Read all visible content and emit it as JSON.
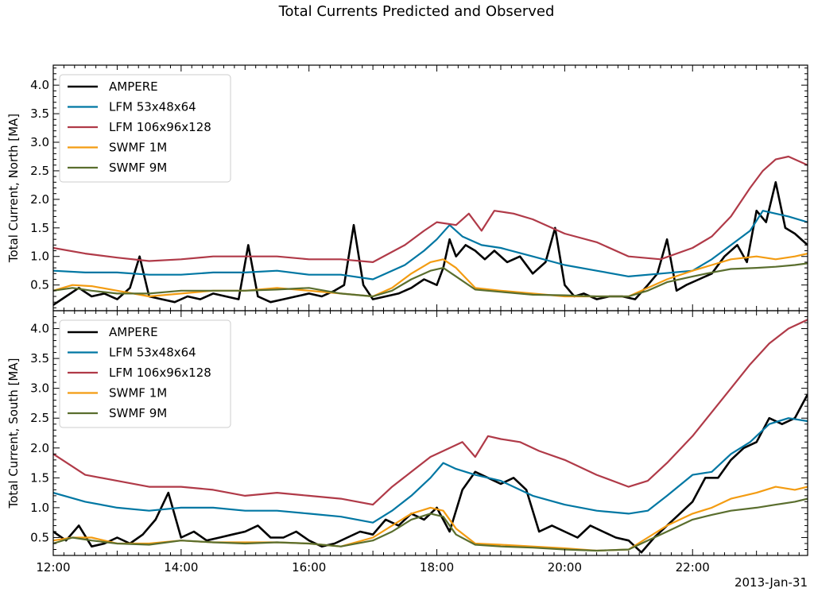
{
  "chart_data": {
    "type": "line",
    "title": "Total Currents Predicted and Observed",
    "date_label": "2013-Jan-31",
    "x_unit": "hours since 00:00",
    "xlim": [
      12.0,
      23.8
    ],
    "x_ticks": [
      12,
      14,
      16,
      18,
      20,
      22
    ],
    "x_tick_labels": [
      "12:00",
      "14:00",
      "16:00",
      "18:00",
      "20:00",
      "22:00"
    ],
    "legend_position": "upper-left",
    "panels": [
      {
        "ylabel": "Total Current, North [MA]",
        "ylim": [
          0.05,
          4.35
        ],
        "y_ticks": [
          0.5,
          1.0,
          1.5,
          2.0,
          2.5,
          3.0,
          3.5,
          4.0
        ],
        "y_tick_labels": [
          "0.5",
          "1.0",
          "1.5",
          "2.0",
          "2.5",
          "3.0",
          "3.5",
          "4.0"
        ],
        "series": [
          {
            "name": "AMPERE",
            "color": "#000000",
            "x": [
              12.0,
              12.2,
              12.4,
              12.6,
              12.8,
              13.0,
              13.2,
              13.35,
              13.5,
              13.7,
              13.9,
              14.1,
              14.3,
              14.5,
              14.7,
              14.9,
              15.05,
              15.2,
              15.4,
              15.6,
              15.8,
              16.0,
              16.2,
              16.4,
              16.55,
              16.7,
              16.85,
              17.0,
              17.2,
              17.4,
              17.6,
              17.8,
              18.0,
              18.1,
              18.2,
              18.3,
              18.45,
              18.6,
              18.75,
              18.9,
              19.1,
              19.3,
              19.5,
              19.7,
              19.85,
              20.0,
              20.15,
              20.3,
              20.5,
              20.7,
              20.9,
              21.1,
              21.3,
              21.45,
              21.6,
              21.75,
              21.9,
              22.1,
              22.3,
              22.5,
              22.7,
              22.85,
              23.0,
              23.15,
              23.3,
              23.45,
              23.6,
              23.8
            ],
            "y": [
              0.15,
              0.3,
              0.45,
              0.3,
              0.35,
              0.25,
              0.45,
              1.0,
              0.3,
              0.25,
              0.2,
              0.3,
              0.25,
              0.35,
              0.3,
              0.25,
              1.2,
              0.3,
              0.2,
              0.25,
              0.3,
              0.35,
              0.3,
              0.4,
              0.5,
              1.55,
              0.5,
              0.25,
              0.3,
              0.35,
              0.45,
              0.6,
              0.5,
              0.8,
              1.3,
              1.0,
              1.2,
              1.1,
              0.95,
              1.1,
              0.9,
              1.0,
              0.7,
              0.9,
              1.5,
              0.5,
              0.3,
              0.35,
              0.25,
              0.3,
              0.3,
              0.25,
              0.5,
              0.7,
              1.3,
              0.4,
              0.5,
              0.6,
              0.7,
              1.0,
              1.2,
              0.9,
              1.8,
              1.6,
              2.3,
              1.5,
              1.4,
              1.2
            ]
          },
          {
            "name": "LFM 53x48x64",
            "color": "#0077a3",
            "x": [
              12.0,
              12.5,
              13.0,
              13.5,
              14.0,
              14.5,
              15.0,
              15.5,
              16.0,
              16.5,
              17.0,
              17.5,
              17.8,
              18.0,
              18.2,
              18.4,
              18.7,
              19.0,
              19.5,
              20.0,
              20.5,
              21.0,
              21.5,
              22.0,
              22.3,
              22.6,
              22.9,
              23.1,
              23.3,
              23.5,
              23.8
            ],
            "y": [
              0.75,
              0.72,
              0.72,
              0.68,
              0.68,
              0.72,
              0.72,
              0.75,
              0.68,
              0.68,
              0.6,
              0.85,
              1.1,
              1.3,
              1.55,
              1.35,
              1.2,
              1.15,
              1.0,
              0.85,
              0.75,
              0.65,
              0.7,
              0.75,
              0.95,
              1.2,
              1.45,
              1.8,
              1.75,
              1.7,
              1.6
            ]
          },
          {
            "name": "LFM 106x96x128",
            "color": "#b03a48",
            "x": [
              12.0,
              12.5,
              13.0,
              13.5,
              14.0,
              14.5,
              15.0,
              15.5,
              16.0,
              16.5,
              17.0,
              17.5,
              17.8,
              18.0,
              18.3,
              18.5,
              18.7,
              18.9,
              19.2,
              19.5,
              20.0,
              20.5,
              21.0,
              21.5,
              22.0,
              22.3,
              22.6,
              22.9,
              23.1,
              23.3,
              23.5,
              23.8
            ],
            "y": [
              1.15,
              1.05,
              0.98,
              0.92,
              0.95,
              1.0,
              1.0,
              1.0,
              0.95,
              0.95,
              0.9,
              1.2,
              1.45,
              1.6,
              1.55,
              1.75,
              1.45,
              1.8,
              1.75,
              1.65,
              1.4,
              1.25,
              1.0,
              0.95,
              1.15,
              1.35,
              1.7,
              2.2,
              2.5,
              2.7,
              2.75,
              2.6
            ]
          },
          {
            "name": "SWMF 1M",
            "color": "#f39c12",
            "x": [
              12.0,
              12.3,
              12.6,
              13.0,
              13.5,
              14.0,
              14.5,
              15.0,
              15.5,
              16.0,
              16.5,
              17.0,
              17.3,
              17.6,
              17.9,
              18.1,
              18.3,
              18.6,
              19.0,
              19.5,
              20.0,
              20.5,
              21.0,
              21.3,
              21.6,
              22.0,
              22.3,
              22.6,
              23.0,
              23.3,
              23.6,
              23.8
            ],
            "y": [
              0.4,
              0.5,
              0.48,
              0.4,
              0.3,
              0.35,
              0.4,
              0.4,
              0.45,
              0.4,
              0.35,
              0.3,
              0.45,
              0.7,
              0.9,
              0.95,
              0.8,
              0.45,
              0.4,
              0.35,
              0.3,
              0.3,
              0.3,
              0.45,
              0.6,
              0.75,
              0.85,
              0.95,
              1.0,
              0.95,
              1.0,
              1.05
            ]
          },
          {
            "name": "SWMF 9M",
            "color": "#5a6e2e",
            "x": [
              12.0,
              12.3,
              12.6,
              13.0,
              13.5,
              14.0,
              14.5,
              15.0,
              15.5,
              16.0,
              16.5,
              17.0,
              17.3,
              17.6,
              17.9,
              18.1,
              18.3,
              18.6,
              19.0,
              19.5,
              20.0,
              20.5,
              21.0,
              21.3,
              21.6,
              22.0,
              22.3,
              22.6,
              23.0,
              23.3,
              23.6,
              23.8
            ],
            "y": [
              0.4,
              0.45,
              0.4,
              0.35,
              0.35,
              0.4,
              0.4,
              0.4,
              0.42,
              0.45,
              0.35,
              0.3,
              0.4,
              0.6,
              0.75,
              0.8,
              0.65,
              0.42,
              0.38,
              0.33,
              0.32,
              0.3,
              0.3,
              0.4,
              0.55,
              0.65,
              0.72,
              0.78,
              0.8,
              0.82,
              0.85,
              0.88
            ]
          }
        ]
      },
      {
        "ylabel": "Total Current, South [MA]",
        "ylim": [
          0.2,
          4.3
        ],
        "y_ticks": [
          0.5,
          1.0,
          1.5,
          2.0,
          2.5,
          3.0,
          3.5,
          4.0
        ],
        "y_tick_labels": [
          "0.5",
          "1.0",
          "1.5",
          "2.0",
          "2.5",
          "3.0",
          "3.5",
          "4.0"
        ],
        "series": [
          {
            "name": "AMPERE",
            "color": "#000000",
            "x": [
              12.0,
              12.2,
              12.4,
              12.6,
              12.8,
              13.0,
              13.2,
              13.4,
              13.6,
              13.8,
              14.0,
              14.2,
              14.4,
              14.6,
              14.8,
              15.0,
              15.2,
              15.4,
              15.6,
              15.8,
              16.0,
              16.2,
              16.4,
              16.6,
              16.8,
              17.0,
              17.2,
              17.4,
              17.6,
              17.8,
              18.0,
              18.2,
              18.4,
              18.6,
              18.8,
              19.0,
              19.2,
              19.4,
              19.6,
              19.8,
              20.0,
              20.2,
              20.4,
              20.6,
              20.8,
              21.0,
              21.2,
              21.4,
              21.6,
              21.8,
              22.0,
              22.2,
              22.4,
              22.6,
              22.8,
              23.0,
              23.2,
              23.4,
              23.6,
              23.8
            ],
            "y": [
              0.6,
              0.45,
              0.7,
              0.35,
              0.4,
              0.5,
              0.4,
              0.55,
              0.8,
              1.25,
              0.5,
              0.6,
              0.45,
              0.5,
              0.55,
              0.6,
              0.7,
              0.5,
              0.5,
              0.6,
              0.45,
              0.35,
              0.4,
              0.5,
              0.6,
              0.55,
              0.8,
              0.7,
              0.9,
              0.8,
              1.0,
              0.6,
              1.3,
              1.6,
              1.5,
              1.4,
              1.5,
              1.3,
              0.6,
              0.7,
              0.6,
              0.5,
              0.7,
              0.6,
              0.5,
              0.45,
              0.25,
              0.5,
              0.7,
              0.9,
              1.1,
              1.5,
              1.5,
              1.8,
              2.0,
              2.1,
              2.5,
              2.4,
              2.5,
              2.9
            ]
          },
          {
            "name": "LFM 53x48x64",
            "color": "#0077a3",
            "x": [
              12.0,
              12.5,
              13.0,
              13.5,
              14.0,
              14.5,
              15.0,
              15.5,
              16.0,
              16.5,
              17.0,
              17.3,
              17.6,
              17.9,
              18.1,
              18.3,
              18.6,
              19.0,
              19.5,
              20.0,
              20.5,
              21.0,
              21.3,
              21.6,
              22.0,
              22.3,
              22.6,
              22.9,
              23.2,
              23.5,
              23.8
            ],
            "y": [
              1.25,
              1.1,
              1.0,
              0.95,
              1.0,
              1.0,
              0.95,
              0.95,
              0.9,
              0.85,
              0.75,
              0.95,
              1.2,
              1.5,
              1.75,
              1.65,
              1.55,
              1.45,
              1.2,
              1.05,
              0.95,
              0.9,
              0.95,
              1.2,
              1.55,
              1.6,
              1.9,
              2.1,
              2.4,
              2.5,
              2.45
            ]
          },
          {
            "name": "LFM 106x96x128",
            "color": "#b03a48",
            "x": [
              12.0,
              12.5,
              13.0,
              13.5,
              14.0,
              14.5,
              15.0,
              15.5,
              16.0,
              16.5,
              17.0,
              17.3,
              17.6,
              17.9,
              18.1,
              18.4,
              18.6,
              18.8,
              19.0,
              19.3,
              19.6,
              20.0,
              20.5,
              21.0,
              21.3,
              21.6,
              22.0,
              22.3,
              22.6,
              22.9,
              23.2,
              23.5,
              23.8
            ],
            "y": [
              1.9,
              1.55,
              1.45,
              1.35,
              1.35,
              1.3,
              1.2,
              1.25,
              1.2,
              1.15,
              1.05,
              1.35,
              1.6,
              1.85,
              1.95,
              2.1,
              1.85,
              2.2,
              2.15,
              2.1,
              1.95,
              1.8,
              1.55,
              1.35,
              1.45,
              1.75,
              2.2,
              2.6,
              3.0,
              3.4,
              3.75,
              4.0,
              4.15
            ]
          },
          {
            "name": "SWMF 1M",
            "color": "#f39c12",
            "x": [
              12.0,
              12.3,
              12.6,
              13.0,
              13.5,
              14.0,
              14.5,
              15.0,
              15.5,
              16.0,
              16.5,
              17.0,
              17.3,
              17.6,
              17.9,
              18.1,
              18.3,
              18.6,
              19.0,
              19.5,
              20.0,
              20.5,
              21.0,
              21.3,
              21.6,
              22.0,
              22.3,
              22.6,
              23.0,
              23.3,
              23.6,
              23.8
            ],
            "y": [
              0.45,
              0.5,
              0.5,
              0.4,
              0.4,
              0.45,
              0.42,
              0.42,
              0.42,
              0.4,
              0.35,
              0.5,
              0.7,
              0.9,
              1.0,
              0.95,
              0.65,
              0.4,
              0.38,
              0.35,
              0.32,
              0.28,
              0.3,
              0.5,
              0.7,
              0.9,
              1.0,
              1.15,
              1.25,
              1.35,
              1.3,
              1.35
            ]
          },
          {
            "name": "SWMF 9M",
            "color": "#5a6e2e",
            "x": [
              12.0,
              12.3,
              12.6,
              13.0,
              13.5,
              14.0,
              14.5,
              15.0,
              15.5,
              16.0,
              16.5,
              17.0,
              17.3,
              17.6,
              17.9,
              18.1,
              18.3,
              18.6,
              19.0,
              19.5,
              20.0,
              20.5,
              21.0,
              21.3,
              21.6,
              22.0,
              22.3,
              22.6,
              23.0,
              23.3,
              23.6,
              23.8
            ],
            "y": [
              0.4,
              0.5,
              0.45,
              0.4,
              0.38,
              0.45,
              0.42,
              0.4,
              0.42,
              0.4,
              0.35,
              0.45,
              0.6,
              0.8,
              0.9,
              0.85,
              0.55,
              0.38,
              0.35,
              0.33,
              0.3,
              0.28,
              0.3,
              0.45,
              0.6,
              0.8,
              0.88,
              0.95,
              1.0,
              1.05,
              1.1,
              1.15
            ]
          }
        ]
      }
    ]
  }
}
